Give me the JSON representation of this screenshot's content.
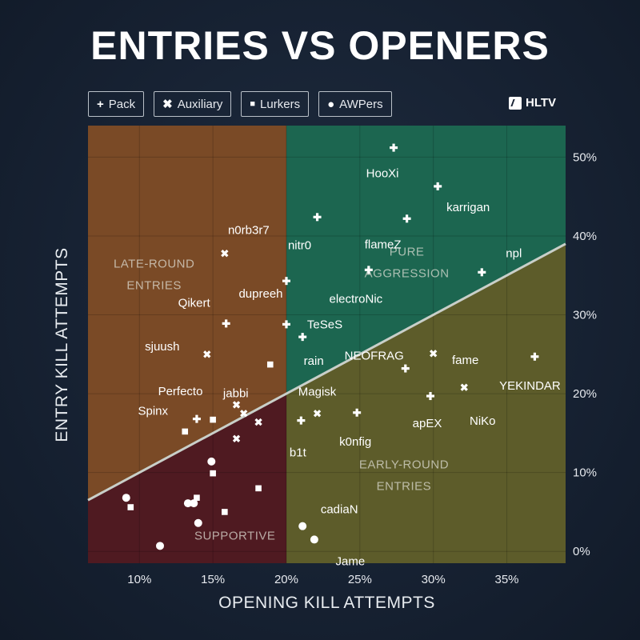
{
  "title": "ENTRIES VS OPENERS",
  "logo": "HLTV",
  "legend": [
    {
      "symbol": "+",
      "label": "Pack"
    },
    {
      "symbol": "✖",
      "label": "Auxiliary"
    },
    {
      "symbol": "■",
      "label": "Lurkers"
    },
    {
      "symbol": "●",
      "label": "AWPers"
    }
  ],
  "colors": {
    "late_round": "#7a4a26",
    "pure_aggression": "#1c6650",
    "early_round": "#5d5c2a",
    "supportive": "#4f1a21",
    "diagonal": "#c9cfc9"
  },
  "chart_data": {
    "type": "scatter",
    "title": "ENTRIES VS OPENERS",
    "xlabel": "OPENING KILL ATTEMPTS",
    "ylabel": "ENTRY KILL ATTEMPTS",
    "xlim": [
      6.5,
      39
    ],
    "ylim": [
      -1.5,
      54
    ],
    "x_ticks": [
      "10%",
      "15%",
      "20%",
      "25%",
      "30%",
      "35%"
    ],
    "x_tick_values": [
      10,
      15,
      20,
      25,
      30,
      35
    ],
    "y_ticks": [
      "0%",
      "10%",
      "20%",
      "30%",
      "40%",
      "50%"
    ],
    "y_tick_values": [
      0,
      10,
      20,
      30,
      40,
      50
    ],
    "grid": true,
    "quadrant_labels": [
      {
        "lines": [
          "LATE-ROUND",
          "ENTRIES"
        ],
        "x": 11,
        "y": 36
      },
      {
        "lines": [
          "PURE",
          "AGGRESSION"
        ],
        "x": 28.2,
        "y": 37.5
      },
      {
        "lines": [
          "EARLY-ROUND",
          "ENTRIES"
        ],
        "x": 28,
        "y": 10.5
      },
      {
        "lines": [
          "SUPPORTIVE"
        ],
        "x": 16.5,
        "y": 1.5
      }
    ],
    "series": [
      {
        "name": "Pack",
        "marker": "plus",
        "points": [
          {
            "x": 27.3,
            "y": 51.2,
            "label": "HooXi"
          },
          {
            "x": 28.2,
            "y": 42.2,
            "label": "flameZ"
          },
          {
            "x": 30.3,
            "y": 46.3,
            "label": "karrigan"
          },
          {
            "x": 22.1,
            "y": 42.4,
            "label": "nitr0"
          },
          {
            "x": 25.6,
            "y": 35.7,
            "label": "electroNic"
          },
          {
            "x": 20.0,
            "y": 34.3,
            "label": "dupreeh"
          },
          {
            "x": 33.3,
            "y": 35.4,
            "label": "npl"
          },
          {
            "x": 15.9,
            "y": 28.9,
            "label": "Qikert"
          },
          {
            "x": 20.0,
            "y": 28.8,
            "label": "TeSeS"
          },
          {
            "x": 21.1,
            "y": 27.2,
            "label": "rain"
          },
          {
            "x": 36.9,
            "y": 24.7,
            "label": "YEKINDAR"
          },
          {
            "x": 28.1,
            "y": 23.2,
            "label": "NEOFRAG"
          },
          {
            "x": 29.8,
            "y": 19.7,
            "label": "apEX"
          },
          {
            "x": 24.8,
            "y": 17.6,
            "label": "k0nfig"
          },
          {
            "x": 21.0,
            "y": 16.6,
            "label": "b1t"
          },
          {
            "x": 13.9,
            "y": 16.8,
            "label": ""
          }
        ]
      },
      {
        "name": "Auxiliary",
        "marker": "cross",
        "points": [
          {
            "x": 15.8,
            "y": 37.8,
            "label": "n0rb3r7"
          },
          {
            "x": 30.0,
            "y": 25.1,
            "label": "fame"
          },
          {
            "x": 32.1,
            "y": 20.8,
            "label": "NiKo"
          },
          {
            "x": 14.6,
            "y": 25.0,
            "label": "sjuush"
          },
          {
            "x": 16.6,
            "y": 18.6,
            "label": "Perfecto"
          },
          {
            "x": 17.1,
            "y": 17.5,
            "label": ""
          },
          {
            "x": 18.1,
            "y": 16.4,
            "label": ""
          },
          {
            "x": 16.6,
            "y": 14.3,
            "label": ""
          },
          {
            "x": 22.1,
            "y": 17.5,
            "label": "Magisk"
          }
        ]
      },
      {
        "name": "Lurkers",
        "marker": "square",
        "points": [
          {
            "x": 18.9,
            "y": 23.7,
            "label": "jabbi"
          },
          {
            "x": 15.0,
            "y": 16.7,
            "label": ""
          },
          {
            "x": 13.1,
            "y": 15.2,
            "label": "Spinx"
          },
          {
            "x": 15.0,
            "y": 9.9,
            "label": ""
          },
          {
            "x": 18.1,
            "y": 8.0,
            "label": ""
          },
          {
            "x": 13.9,
            "y": 6.8,
            "label": ""
          },
          {
            "x": 15.8,
            "y": 5.0,
            "label": ""
          },
          {
            "x": 9.4,
            "y": 5.6,
            "label": ""
          }
        ]
      },
      {
        "name": "AWPers",
        "marker": "circle",
        "points": [
          {
            "x": 9.1,
            "y": 6.8,
            "label": ""
          },
          {
            "x": 13.3,
            "y": 6.1,
            "label": ""
          },
          {
            "x": 13.7,
            "y": 6.1,
            "label": ""
          },
          {
            "x": 14.9,
            "y": 11.4,
            "label": ""
          },
          {
            "x": 14.0,
            "y": 3.6,
            "label": ""
          },
          {
            "x": 11.4,
            "y": 0.7,
            "label": ""
          },
          {
            "x": 21.1,
            "y": 3.2,
            "label": "cadiaN"
          },
          {
            "x": 21.9,
            "y": 1.5,
            "label": "Jame"
          }
        ]
      }
    ]
  }
}
